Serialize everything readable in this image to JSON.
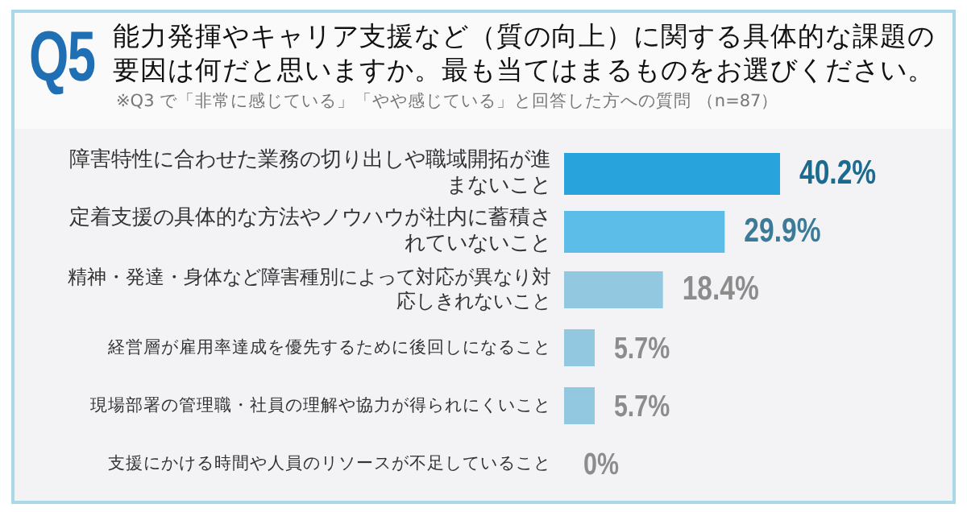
{
  "chart_data": {
    "type": "bar",
    "orientation": "horizontal",
    "title": "Q5",
    "subtitle": "能力発揮やキャリア支援など（質の向上）に関する具体的な課題の要因は何だと思いますか。最も当てはまるものをお選びください。",
    "annotations": [
      "※Q3 で「非常に感じている」「やや感じている」と回答した方への質問 （n=87）"
    ],
    "categories": [
      "障害特性に合わせた業務の切り出しや職域開拓が進まないこと",
      "定着支援の具体的な方法やノウハウが社内に蓄積されていないこと",
      "精神・発達・身体など障害種別によって対応が異なり対応しきれないこと",
      "経営層が雇用率達成を優先するために後回しになること",
      "現場部署の管理職・社員の理解や協力が得られにくいこと",
      "支援にかける時間や人員のリソースが不足していること"
    ],
    "values": [
      40.2,
      29.9,
      18.4,
      5.7,
      5.7,
      0
    ],
    "colors": [
      "#29a3dc",
      "#5bbde8",
      "#92c9e0",
      "#92c9e0",
      "#92c9e0",
      "#92c9e0"
    ],
    "value_labels": [
      "40.2%",
      "29.9%",
      "18.4%",
      "5.7%",
      "5.7%",
      "0%"
    ]
  }
}
